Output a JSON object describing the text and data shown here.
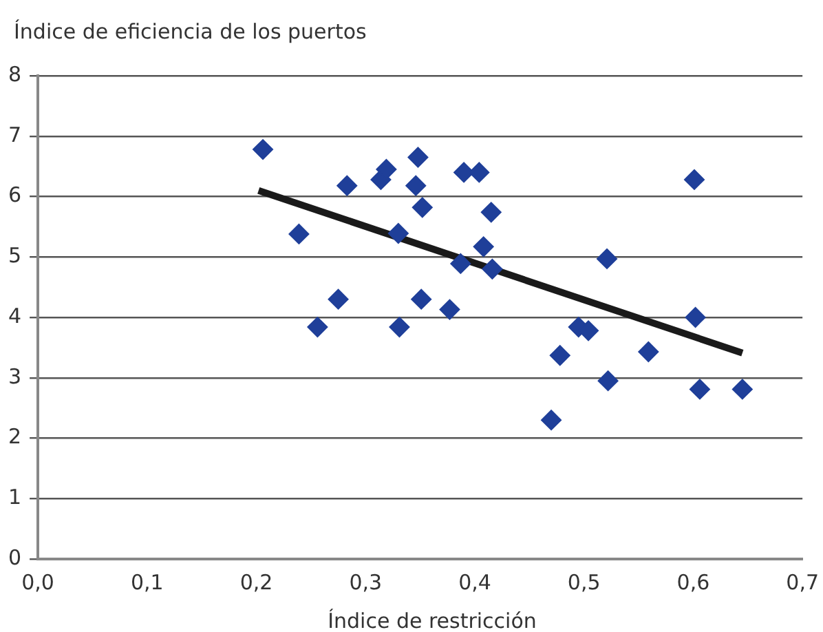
{
  "chart_data": {
    "type": "scatter",
    "ylabel": "Índice de eficiencia de los puertos",
    "xlabel": "Índice de restricción",
    "grid": "y",
    "xlim": [
      0,
      0.7
    ],
    "xticks": [
      {
        "value": 0,
        "label": "0,0"
      },
      {
        "value": 0.1,
        "label": "0,1"
      },
      {
        "value": 0.2,
        "label": "0,2"
      },
      {
        "value": 0.3,
        "label": "0,3"
      },
      {
        "value": 0.4,
        "label": "0,4"
      },
      {
        "value": 0.5,
        "label": "0,5"
      },
      {
        "value": 0.6,
        "label": "0,6"
      },
      {
        "value": 0.7,
        "label": "0,7"
      }
    ],
    "ylim": [
      0,
      8
    ],
    "yticks": [
      0,
      1,
      2,
      3,
      4,
      5,
      6,
      7,
      8
    ],
    "series": [
      {
        "type": "scatter",
        "marker": "diamond",
        "color": "#1f3f99",
        "x": [
          0.206,
          0.239,
          0.256,
          0.275,
          0.283,
          0.314,
          0.319,
          0.348,
          0.346,
          0.352,
          0.33,
          0.331,
          0.351,
          0.377,
          0.387,
          0.39,
          0.404,
          0.415,
          0.408,
          0.416,
          0.47,
          0.478,
          0.495,
          0.504,
          0.521,
          0.522,
          0.559,
          0.601,
          0.602,
          0.606,
          0.645
        ],
        "values": [
          6.78,
          5.38,
          3.84,
          4.3,
          6.18,
          6.28,
          6.45,
          6.65,
          6.18,
          5.82,
          5.39,
          3.84,
          4.3,
          4.13,
          4.89,
          6.4,
          6.4,
          5.74,
          5.17,
          4.8,
          2.3,
          3.37,
          3.84,
          3.78,
          4.97,
          2.95,
          3.43,
          6.28,
          4.0,
          2.81,
          2.81
        ]
      },
      {
        "type": "line",
        "color": "#1a1a1a",
        "x": [
          0.202,
          0.645
        ],
        "values": [
          6.1,
          3.41
        ]
      }
    ]
  }
}
